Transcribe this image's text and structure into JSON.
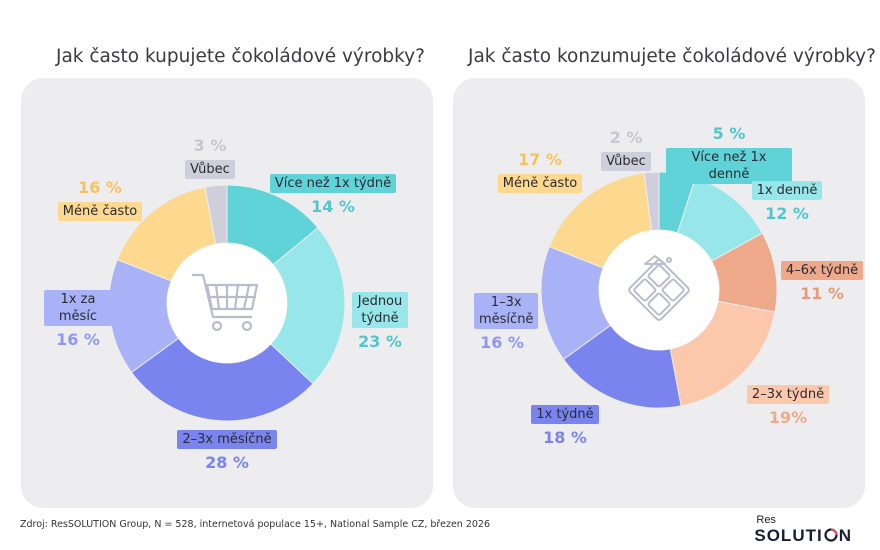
{
  "footer": "Zdroj: ResSOLUTION Group, N = 528, internetová populace 15+, National Sample CZ, březen 2026",
  "logo": {
    "top": "Res",
    "bottom_a": "SOLUTI",
    "bottom_b": "N"
  },
  "chart_data": [
    {
      "type": "donut",
      "title": "Jak často kupujete čokoládové výrobky?",
      "center_icon": "shopping-cart-icon",
      "slices": [
        {
          "label": "Více než 1x týdně",
          "pct_label": "14 %",
          "value": 14,
          "color": "#5fd3d8",
          "label_bg": "#5fd3d8",
          "pct_color": "#4fc7cc"
        },
        {
          "label": "Jednou týdně",
          "pct_label": "23 %",
          "value": 23,
          "color": "#97e6ea",
          "label_bg": "#97e6ea",
          "pct_color": "#4fc7cc"
        },
        {
          "label": "2–3x měsíčně",
          "pct_label": "28 %",
          "value": 28,
          "color": "#7a84ef",
          "label_bg": "#7a84ef",
          "pct_color": "#7a84ef"
        },
        {
          "label": "1x za měsíc",
          "pct_label": "16 %",
          "value": 16,
          "color": "#a9b2f7",
          "label_bg": "#a9b2f7",
          "pct_color": "#8f98f2"
        },
        {
          "label": "Méně často",
          "pct_label": "16 %",
          "value": 16,
          "color": "#fcd98e",
          "label_bg": "#fcd98e",
          "pct_color": "#f7c25c"
        },
        {
          "label": "Vůbec",
          "pct_label": "3 %",
          "value": 3,
          "color": "#cfcfdb",
          "label_bg": "#cfcfdb",
          "pct_color": "#c6c6d1"
        }
      ]
    },
    {
      "type": "donut",
      "title": "Jak často konzumujete čokoládové výrobky?",
      "center_icon": "chocolate-icon",
      "slices": [
        {
          "label": "Více než 1x denně",
          "pct_label": "5 %",
          "value": 5,
          "color": "#5fd3d8",
          "label_bg": "#5fd3d8",
          "pct_color": "#4fc7cc"
        },
        {
          "label": "1x denně",
          "pct_label": "12 %",
          "value": 12,
          "color": "#97e6ea",
          "label_bg": "#97e6ea",
          "pct_color": "#4fc7cc"
        },
        {
          "label": "4–6x týdně",
          "pct_label": "11 %",
          "value": 11,
          "color": "#eea88a",
          "label_bg": "#eea88a",
          "pct_color": "#e99a78"
        },
        {
          "label": "2–3x týdně",
          "pct_label": "19%",
          "value": 19,
          "color": "#fcc8ac",
          "label_bg": "#fcc8ac",
          "pct_color": "#f0a98a"
        },
        {
          "label": "1x týdně",
          "pct_label": "18 %",
          "value": 18,
          "color": "#7a84ef",
          "label_bg": "#7a84ef",
          "pct_color": "#7a84ef"
        },
        {
          "label": "1–3x měsíčně",
          "pct_label": "16 %",
          "value": 16,
          "color": "#a9b2f7",
          "label_bg": "#a9b2f7",
          "pct_color": "#8f98f2"
        },
        {
          "label": "Méně často",
          "pct_label": "17 %",
          "value": 17,
          "color": "#fcd98e",
          "label_bg": "#fcd98e",
          "pct_color": "#f7c25c"
        },
        {
          "label": "Vůbec",
          "pct_label": "2 %",
          "value": 2,
          "color": "#cfcfdb",
          "label_bg": "#cfcfdb",
          "pct_color": "#c6c6d1"
        }
      ]
    }
  ]
}
